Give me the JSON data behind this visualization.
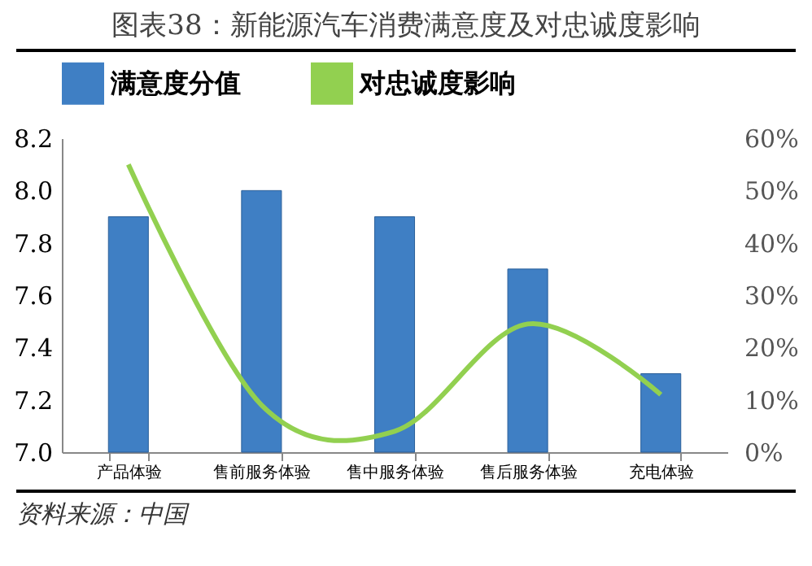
{
  "chart_data": {
    "type": "bar",
    "title": "图表38：新能源汽车消费满意度及对忠诚度影响",
    "categories": [
      "产品体验",
      "售前服务体验",
      "售中服务体验",
      "售后服务体验",
      "充电体验"
    ],
    "series": [
      {
        "name": "满意度分值",
        "color": "#3f7fc4",
        "values": [
          7.9,
          8.0,
          7.9,
          7.7,
          7.3
        ]
      },
      {
        "name": "对忠诚度影响",
        "type": "line",
        "axis": "y2",
        "color": "#92d050",
        "values": [
          55,
          9,
          4,
          24.5,
          11
        ]
      }
    ],
    "ylim": [
      7.0,
      8.2
    ],
    "yticks": [
      {
        "value": 7.0,
        "label": "7.0"
      },
      {
        "value": 7.2,
        "label": "7.2"
      },
      {
        "value": 7.4,
        "label": "7.4"
      },
      {
        "value": 7.6,
        "label": "7.6"
      },
      {
        "value": 7.8,
        "label": "7.8"
      },
      {
        "value": 8.0,
        "label": "8.0"
      },
      {
        "value": 8.2,
        "label": "8.2"
      }
    ],
    "y2lim": [
      0,
      60
    ],
    "y2ticks": [
      {
        "value": 0,
        "label": "0%"
      },
      {
        "value": 10,
        "label": "10%"
      },
      {
        "value": 20,
        "label": "20%"
      },
      {
        "value": 30,
        "label": "30%"
      },
      {
        "value": 40,
        "label": "40%"
      },
      {
        "value": 50,
        "label": "50%"
      },
      {
        "value": 60,
        "label": "60%"
      }
    ],
    "annotations": [
      "资料来源：中国"
    ],
    "legend": "top",
    "grid": false,
    "marker": "none",
    "line_style": "solid"
  }
}
